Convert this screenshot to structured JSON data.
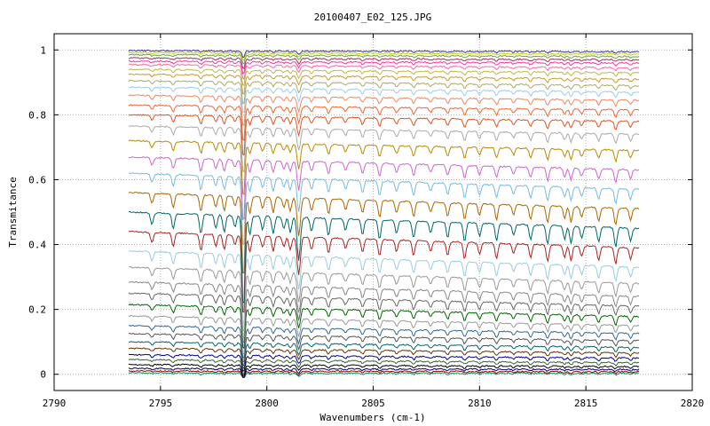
{
  "chart_data": {
    "type": "line",
    "title": "20100407_E02_125.JPG",
    "xlabel": "Wavenumbers (cm-1)",
    "ylabel": "Transmitance",
    "xlim": [
      2790,
      2820
    ],
    "ylim": [
      -0.05,
      1.05
    ],
    "x_ticks": [
      "2790",
      "2795",
      "2800",
      "2805",
      "2810",
      "2815",
      "2820"
    ],
    "y_ticks": [
      "0",
      "0.2",
      "0.4",
      "0.6",
      "0.8",
      "1"
    ],
    "x_range": [
      2793.5,
      2817.5
    ],
    "grid": true,
    "legend": "none",
    "absorption_lines_cm1": [
      2794.6,
      2795.6,
      2796.9,
      2797.6,
      2798.0,
      2798.5,
      2798.9,
      2799.2,
      2799.8,
      2800.3,
      2800.8,
      2801.1,
      2801.5,
      2802.1,
      2802.9,
      2803.7,
      2804.5,
      2805.3,
      2806.1,
      2806.9,
      2807.7,
      2808.5,
      2809.3,
      2810.0,
      2810.8,
      2811.6,
      2812.4,
      2813.2,
      2814.0,
      2814.3,
      2814.8,
      2815.6,
      2816.4,
      2817.1
    ],
    "strongest_line_cm1": 2798.9,
    "series": [
      {
        "baseline_left": 0.004,
        "baseline_right": 0.003,
        "color": "#009966"
      },
      {
        "baseline_left": 0.01,
        "baseline_right": 0.008,
        "color": "#990000"
      },
      {
        "baseline_left": 0.018,
        "baseline_right": 0.015,
        "color": "#000066"
      },
      {
        "baseline_left": 0.03,
        "baseline_right": 0.024,
        "color": "#000000"
      },
      {
        "baseline_left": 0.045,
        "baseline_right": 0.036,
        "color": "#336633"
      },
      {
        "baseline_left": 0.06,
        "baseline_right": 0.05,
        "color": "#000099"
      },
      {
        "baseline_left": 0.08,
        "baseline_right": 0.066,
        "color": "#663300"
      },
      {
        "baseline_left": 0.1,
        "baseline_right": 0.083,
        "color": "#006666"
      },
      {
        "baseline_left": 0.125,
        "baseline_right": 0.104,
        "color": "#555555"
      },
      {
        "baseline_left": 0.15,
        "baseline_right": 0.126,
        "color": "#336699"
      },
      {
        "baseline_left": 0.18,
        "baseline_right": 0.15,
        "color": "#999999"
      },
      {
        "baseline_left": 0.215,
        "baseline_right": 0.178,
        "color": "#006600"
      },
      {
        "baseline_left": 0.25,
        "baseline_right": 0.21,
        "color": "#666666"
      },
      {
        "baseline_left": 0.285,
        "baseline_right": 0.24,
        "color": "#888888"
      },
      {
        "baseline_left": 0.33,
        "baseline_right": 0.28,
        "color": "#999999"
      },
      {
        "baseline_left": 0.38,
        "baseline_right": 0.33,
        "color": "#99ccdd"
      },
      {
        "baseline_left": 0.44,
        "baseline_right": 0.39,
        "color": "#aa2222"
      },
      {
        "baseline_left": 0.5,
        "baseline_right": 0.45,
        "color": "#006666"
      },
      {
        "baseline_left": 0.56,
        "baseline_right": 0.51,
        "color": "#aa6600"
      },
      {
        "baseline_left": 0.62,
        "baseline_right": 0.57,
        "color": "#77bbdd"
      },
      {
        "baseline_left": 0.67,
        "baseline_right": 0.63,
        "color": "#cc66cc"
      },
      {
        "baseline_left": 0.72,
        "baseline_right": 0.69,
        "color": "#bb8800"
      },
      {
        "baseline_left": 0.765,
        "baseline_right": 0.74,
        "color": "#aaaaaa"
      },
      {
        "baseline_left": 0.8,
        "baseline_right": 0.78,
        "color": "#dd5522"
      },
      {
        "baseline_left": 0.83,
        "baseline_right": 0.815,
        "color": "#ee6633"
      },
      {
        "baseline_left": 0.86,
        "baseline_right": 0.845,
        "color": "#ee8866"
      },
      {
        "baseline_left": 0.885,
        "baseline_right": 0.87,
        "color": "#99ccee"
      },
      {
        "baseline_left": 0.905,
        "baseline_right": 0.89,
        "color": "#aaaa66"
      },
      {
        "baseline_left": 0.925,
        "baseline_right": 0.91,
        "color": "#cc9933"
      },
      {
        "baseline_left": 0.94,
        "baseline_right": 0.93,
        "color": "#bbbb44"
      },
      {
        "baseline_left": 0.955,
        "baseline_right": 0.945,
        "color": "#ff66aa"
      },
      {
        "baseline_left": 0.965,
        "baseline_right": 0.96,
        "color": "#ff3399"
      },
      {
        "baseline_left": 0.975,
        "baseline_right": 0.97,
        "color": "#993366"
      },
      {
        "baseline_left": 0.985,
        "baseline_right": 0.98,
        "color": "#66aa33"
      },
      {
        "baseline_left": 0.992,
        "baseline_right": 0.988,
        "color": "#cccc00"
      },
      {
        "baseline_left": 0.998,
        "baseline_right": 0.995,
        "color": "#333399"
      }
    ]
  }
}
